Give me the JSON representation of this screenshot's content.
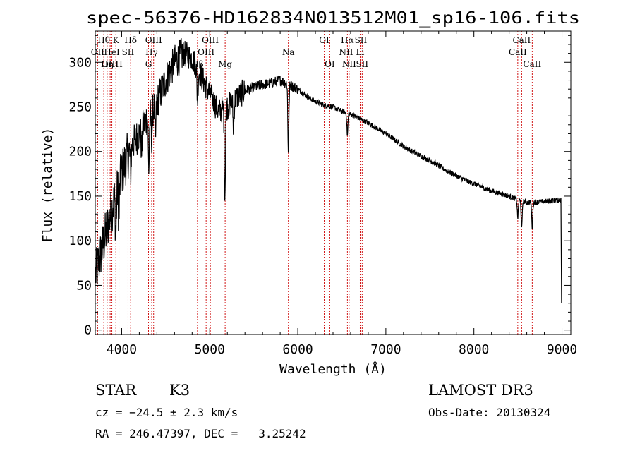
{
  "chart_data": {
    "type": "line",
    "title": "spec-56376-HD162834N013512M01_sp16-106.fits",
    "xlabel": "Wavelength (Å)",
    "ylabel": "Flux (relative)",
    "xlim": [
      3700,
      9100
    ],
    "ylim": [
      -5,
      335
    ],
    "x_ticks": [
      4000,
      5000,
      6000,
      7000,
      8000,
      9000
    ],
    "y_ticks": [
      0,
      50,
      100,
      150,
      200,
      250,
      300
    ],
    "line_color": "#000000",
    "marker_color": "#cc0000",
    "continuum": {
      "x": [
        3700,
        3800,
        3900,
        4000,
        4100,
        4200,
        4300,
        4400,
        4500,
        4600,
        4700,
        4800,
        4900,
        5000,
        5100,
        5200,
        5300,
        5400,
        5500,
        5600,
        5700,
        5800,
        5900,
        6000,
        6100,
        6200,
        6300,
        6400,
        6500,
        6600,
        6700,
        6800,
        6900,
        7000,
        7100,
        7200,
        7300,
        7400,
        7500,
        7600,
        7700,
        7800,
        7900,
        8000,
        8100,
        8200,
        8300,
        8400,
        8500,
        8600,
        8700,
        8800,
        8900,
        8990
      ],
      "y": [
        60,
        100,
        140,
        175,
        205,
        220,
        240,
        255,
        280,
        300,
        310,
        305,
        285,
        265,
        245,
        250,
        260,
        268,
        272,
        275,
        277,
        280,
        275,
        270,
        262,
        256,
        252,
        250,
        245,
        242,
        237,
        232,
        226,
        220,
        213,
        206,
        200,
        195,
        190,
        184,
        178,
        173,
        168,
        164,
        160,
        156,
        153,
        150,
        146,
        143,
        143,
        144,
        145,
        146
      ]
    },
    "absorption": [
      {
        "x": 3934,
        "depth": 45
      },
      {
        "x": 3969,
        "depth": 40
      },
      {
        "x": 4102,
        "depth": 30
      },
      {
        "x": 4227,
        "depth": 25
      },
      {
        "x": 4308,
        "depth": 60
      },
      {
        "x": 4340,
        "depth": 30
      },
      {
        "x": 4383,
        "depth": 40
      },
      {
        "x": 4861,
        "depth": 35
      },
      {
        "x": 5172,
        "depth": 100
      },
      {
        "x": 5270,
        "depth": 30
      },
      {
        "x": 5893,
        "depth": 75
      },
      {
        "x": 6563,
        "depth": 25
      },
      {
        "x": 8498,
        "depth": 20
      },
      {
        "x": 8542,
        "depth": 32
      },
      {
        "x": 8662,
        "depth": 28
      }
    ],
    "lines": [
      {
        "label": "Hθ",
        "x": 3797,
        "row": 1
      },
      {
        "label": "OII",
        "x": 3727,
        "row": 2
      },
      {
        "label": "OIII",
        "x": 3869,
        "row": 3
      },
      {
        "label": "K",
        "x": 3934,
        "row": 1
      },
      {
        "label": "HeI",
        "x": 3889,
        "row": 2
      },
      {
        "label": "Hη",
        "x": 3835,
        "row": 3
      },
      {
        "label": "SII",
        "x": 4072,
        "row": 2
      },
      {
        "label": "H",
        "x": 3969,
        "row": 3
      },
      {
        "label": "Hδ",
        "x": 4102,
        "row": 1
      },
      {
        "label": "OIII",
        "x": 4363,
        "row": 1
      },
      {
        "label": "Hγ",
        "x": 4341,
        "row": 2
      },
      {
        "label": "G",
        "x": 4305,
        "row": 3
      },
      {
        "label": "OIII",
        "x": 5007,
        "row": 1
      },
      {
        "label": "OIII",
        "x": 4959,
        "row": 2
      },
      {
        "label": "Hβ",
        "x": 4861,
        "row": 3
      },
      {
        "label": "Mg",
        "x": 5175,
        "row": 3
      },
      {
        "label": "Na",
        "x": 5893,
        "row": 2
      },
      {
        "label": "OI",
        "x": 6300,
        "row": 1
      },
      {
        "label": "OI",
        "x": 6363,
        "row": 3
      },
      {
        "label": "Hα",
        "x": 6563,
        "row": 1
      },
      {
        "label": "NII",
        "x": 6548,
        "row": 2
      },
      {
        "label": "NII",
        "x": 6583,
        "row": 3
      },
      {
        "label": "SII",
        "x": 6716,
        "row": 1
      },
      {
        "label": "Li",
        "x": 6708,
        "row": 2
      },
      {
        "label": "SII",
        "x": 6731,
        "row": 3
      },
      {
        "label": "CaII",
        "x": 8542,
        "row": 1
      },
      {
        "label": "CaII",
        "x": 8498,
        "row": 2
      },
      {
        "label": "CaII",
        "x": 8662,
        "row": 3
      }
    ]
  },
  "info": {
    "class": "STAR",
    "subclass": "K3",
    "survey": "LAMOST DR3",
    "cz": "cz = −24.5 ± 2.3 km/s",
    "obs_date": "Obs-Date: 20130324",
    "coords": "RA = 246.47397, DEC =   3.25242"
  }
}
